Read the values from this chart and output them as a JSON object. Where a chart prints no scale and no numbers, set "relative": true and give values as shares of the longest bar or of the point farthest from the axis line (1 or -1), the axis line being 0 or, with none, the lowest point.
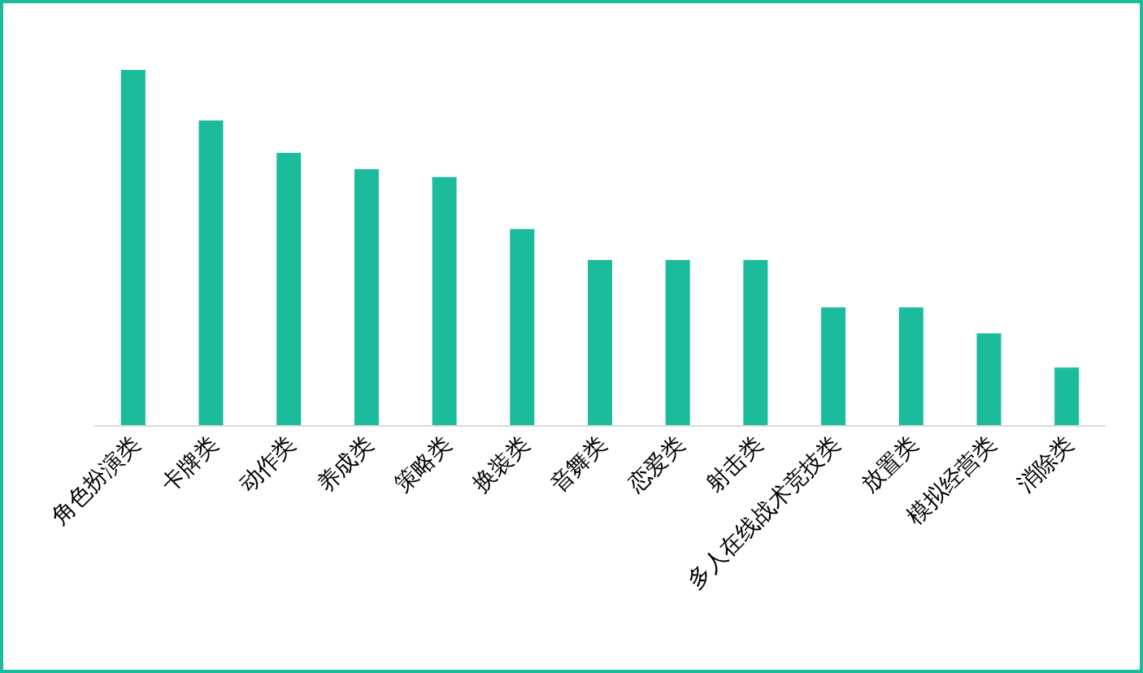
{
  "chart_data": {
    "type": "bar",
    "relative": true,
    "color": "#1abc9c",
    "categories": [
      "角色扮演类",
      "卡牌类",
      "动作类",
      "养成类",
      "策略类",
      "换装类",
      "音舞类",
      "恋爱类",
      "射击类",
      "多人在线战术竞技类",
      "放置类",
      "模拟经营类",
      "消除类"
    ],
    "values": [
      1,
      0.858,
      0.767,
      0.721,
      0.699,
      0.553,
      0.466,
      0.466,
      0.466,
      0.333,
      0.333,
      0.26,
      0.164
    ]
  }
}
